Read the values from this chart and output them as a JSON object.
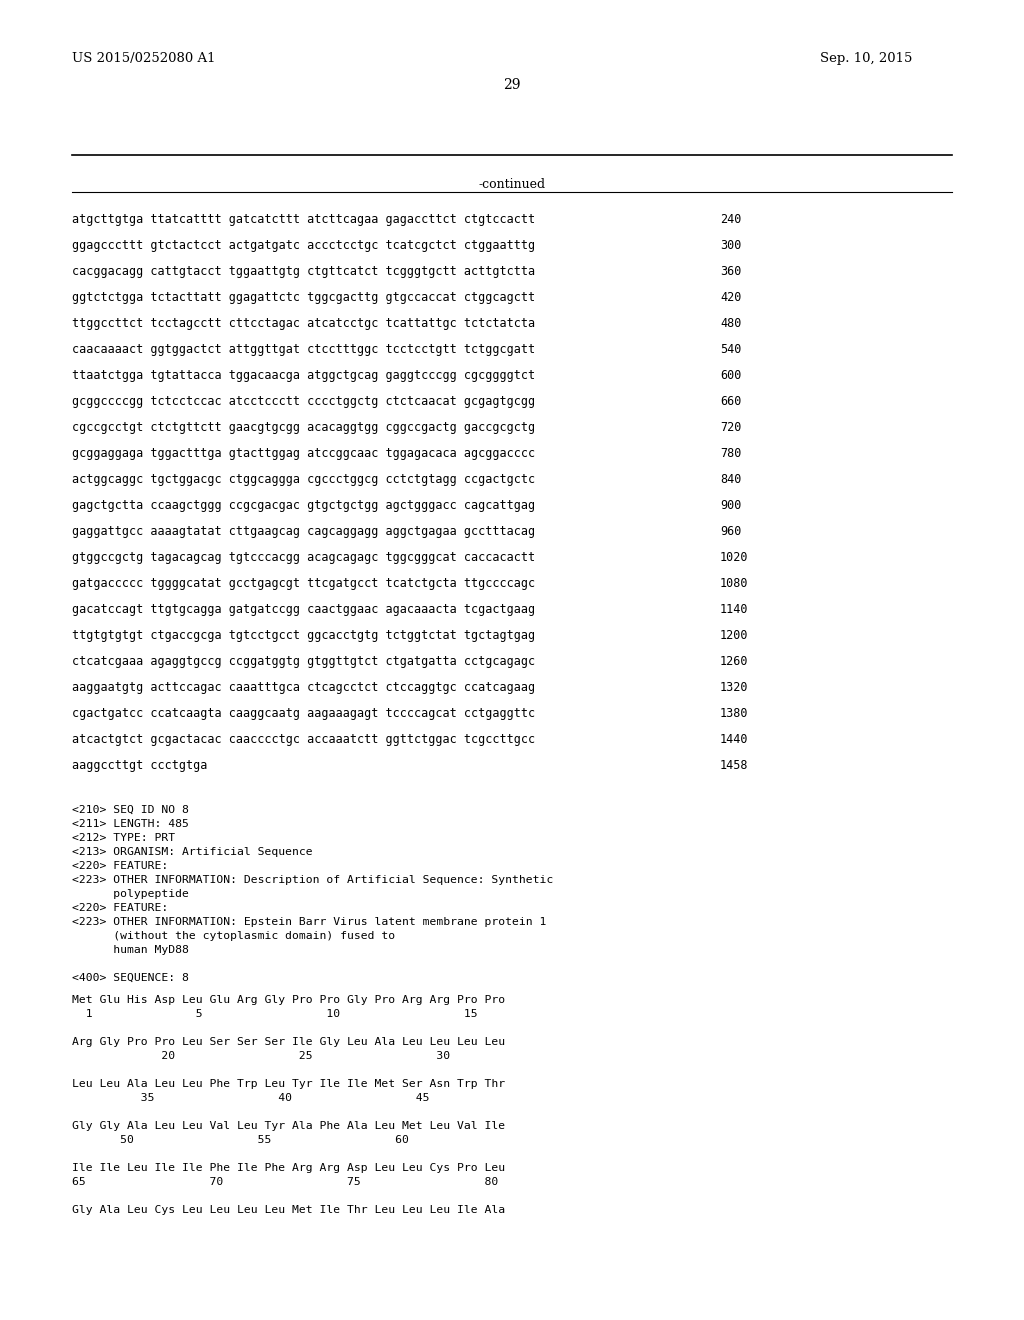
{
  "patent_number": "US 2015/0252080 A1",
  "patent_date": "Sep. 10, 2015",
  "page_number": "29",
  "continued_label": "-continued",
  "background_color": "#ffffff",
  "text_color": "#000000",
  "font_size_header": 10,
  "font_size_body": 8.5,
  "sequence_lines": [
    [
      "atgcttgtga ttatcatttt gatcatcttt atcttcagaa gagaccttct ctgtccactt",
      "240"
    ],
    [
      "ggagcccttt gtctactcct actgatgatc accctcctgc tcatcgctct ctggaatttg",
      "300"
    ],
    [
      "cacggacagg cattgtacct tggaattgtg ctgttcatct tcgggtgctt acttgtctta",
      "360"
    ],
    [
      "ggtctctgga tctacttatt ggagattctc tggcgacttg gtgccaccat ctggcagctt",
      "420"
    ],
    [
      "ttggccttct tcctagcctt cttcctagac atcatcctgc tcattattgc tctctatcta",
      "480"
    ],
    [
      "caacaaaact ggtggactct attggttgat ctcctttggc tcctcctgtt tctggcgatt",
      "540"
    ],
    [
      "ttaatctgga tgtattacca tggacaacga atggctgcag gaggtcccgg cgcggggtct",
      "600"
    ],
    [
      "gcggccccgg tctcctccac atcctccctt cccctggctg ctctcaacat gcgagtgcgg",
      "660"
    ],
    [
      "cgccgcctgt ctctgttctt gaacgtgcgg acacaggtgg cggccgactg gaccgcgctg",
      "720"
    ],
    [
      "gcggaggaga tggactttga gtacttggag atccggcaac tggagacaca agcggacccc",
      "780"
    ],
    [
      "actggcaggc tgctggacgc ctggcaggga cgccctggcg cctctgtagg ccgactgctc",
      "840"
    ],
    [
      "gagctgctta ccaagctggg ccgcgacgac gtgctgctgg agctgggacc cagcattgag",
      "900"
    ],
    [
      "gaggattgcc aaaagtatat cttgaagcag cagcaggagg aggctgagaa gcctttacag",
      "960"
    ],
    [
      "gtggccgctg tagacagcag tgtcccacgg acagcagagc tggcgggcat caccacactt",
      "1020"
    ],
    [
      "gatgaccccc tggggcatat gcctgagcgt ttcgatgcct tcatctgcta ttgccccagc",
      "1080"
    ],
    [
      "gacatccagt ttgtgcagga gatgatccgg caactggaac agacaaacta tcgactgaag",
      "1140"
    ],
    [
      "ttgtgtgtgt ctgaccgcga tgtcctgcct ggcacctgtg tctggtctat tgctagtgag",
      "1200"
    ],
    [
      "ctcatcgaaa agaggtgccg ccggatggtg gtggttgtct ctgatgatta cctgcagagc",
      "1260"
    ],
    [
      "aaggaatgtg acttccagac caaatttgca ctcagcctct ctccaggtgc ccatcagaag",
      "1320"
    ],
    [
      "cgactgatcc ccatcaagta caaggcaatg aagaaagagt tccccagcat cctgaggttc",
      "1380"
    ],
    [
      "atcactgtct gcgactacac caacccctgc accaaatctt ggttctggac tcgccttgcc",
      "1440"
    ],
    [
      "aaggccttgt ccctgtga",
      "1458"
    ]
  ],
  "metadata_lines": [
    "<210> SEQ ID NO 8",
    "<211> LENGTH: 485",
    "<212> TYPE: PRT",
    "<213> ORGANISM: Artificial Sequence",
    "<220> FEATURE:",
    "<223> OTHER INFORMATION: Description of Artificial Sequence: Synthetic",
    "      polypeptide",
    "<220> FEATURE:",
    "<223> OTHER INFORMATION: Epstein Barr Virus latent membrane protein 1",
    "      (without the cytoplasmic domain) fused to",
    "      human MyD88",
    "",
    "<400> SEQUENCE: 8"
  ],
  "protein_lines": [
    "Met Glu His Asp Leu Glu Arg Gly Pro Pro Gly Pro Arg Arg Pro Pro",
    "  1               5                  10                  15",
    "",
    "Arg Gly Pro Pro Leu Ser Ser Ser Ile Gly Leu Ala Leu Leu Leu Leu",
    "             20                  25                  30",
    "",
    "Leu Leu Ala Leu Leu Phe Trp Leu Tyr Ile Ile Met Ser Asn Trp Thr",
    "          35                  40                  45",
    "",
    "Gly Gly Ala Leu Leu Val Leu Tyr Ala Phe Ala Leu Met Leu Val Ile",
    "       50                  55                  60",
    "",
    "Ile Ile Leu Ile Ile Phe Ile Phe Arg Arg Asp Leu Leu Cys Pro Leu",
    "65                  70                  75                  80",
    "",
    "Gly Ala Leu Cys Leu Leu Leu Leu Met Ile Thr Leu Leu Leu Ile Ala"
  ]
}
